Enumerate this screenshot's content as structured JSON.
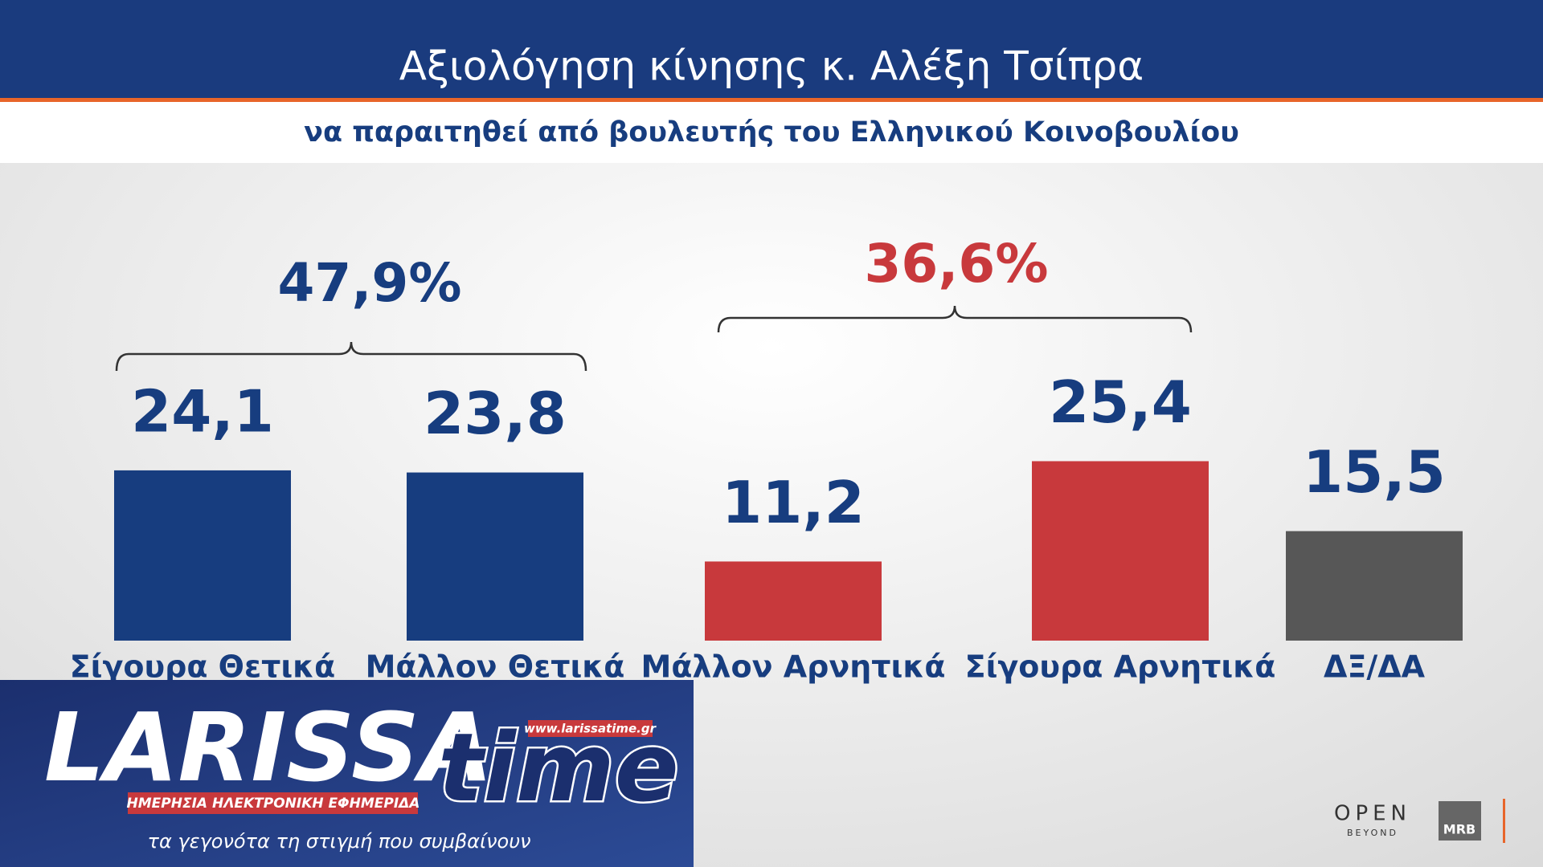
{
  "chart_data": {
    "type": "bar",
    "title": "Αξιολόγηση κίνησης κ. Αλέξη Τσίπρα",
    "subtitle": "να παραιτηθεί από βουλευτής του Ελληνικού Κοινοβουλίου",
    "categories": [
      "Σίγουρα Θετικά",
      "Μάλλον Θετικά",
      "Μάλλον Αρνητικά",
      "Σίγουρα Αρνητικά",
      "ΔΞ/ΔΑ"
    ],
    "values": [
      24.1,
      23.8,
      11.2,
      25.4,
      15.5
    ],
    "value_labels": [
      "24,1",
      "23,8",
      "11,2",
      "25,4",
      "15,5"
    ],
    "colors": [
      "#173d7f",
      "#173d7f",
      "#c8393c",
      "#c8393c",
      "#575757"
    ],
    "annotations": [
      {
        "text": "47,9%",
        "color": "#173d7f"
      },
      {
        "text": "36,6%",
        "color": "#c8393c"
      }
    ]
  },
  "logos": {
    "brand": "LARISSA",
    "brand_suffix": "time",
    "url": "www.larissatime.gr",
    "tagline_strip": "ΗΜΕΡΗΣΙΑ ΗΛΕΚΤΡΟΝΙΚΗ ΕΦΗΜΕΡΙΔΑ",
    "slogan": "τα γεγονότα τη στιγμή που συμβαίνουν",
    "channel": "OPEN",
    "channel_sub": "BEYOND",
    "pollster": "MRB"
  }
}
